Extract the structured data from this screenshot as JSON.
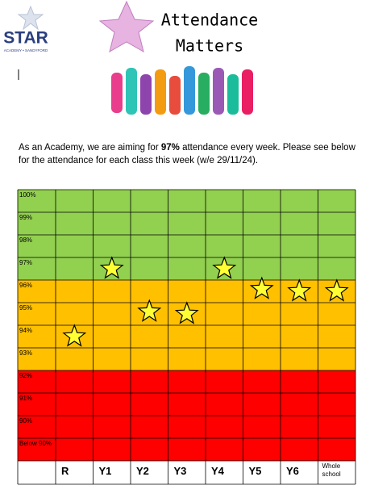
{
  "logo": {
    "name": "STAR",
    "tagline": "ACADEMY • SANDYFORD"
  },
  "header": {
    "title_line1": "Attendance",
    "title_line2": "Matters"
  },
  "intro": {
    "before": "As an Academy, we are aiming for ",
    "target": "97%",
    "after": " attendance every week. Please see below for the attendance for each class this week (w/e 29/11/24)."
  },
  "chart_data": {
    "type": "star-grid",
    "categories": [
      "R",
      "Y1",
      "Y2",
      "Y3",
      "Y4",
      "Y5",
      "Y6",
      "Whole school"
    ],
    "values": [
      94.5,
      97.5,
      95.6,
      95.5,
      97.5,
      96.6,
      96.5,
      96.5
    ],
    "ylim": [
      89,
      101
    ],
    "yticks": [
      {
        "value": 100,
        "label": "100%"
      },
      {
        "value": 99,
        "label": "99%"
      },
      {
        "value": 98,
        "label": "98%"
      },
      {
        "value": 97,
        "label": "97%"
      },
      {
        "value": 96,
        "label": "96%"
      },
      {
        "value": 95,
        "label": "95%"
      },
      {
        "value": 94,
        "label": "94%"
      },
      {
        "value": 93,
        "label": "93%"
      },
      {
        "value": 92,
        "label": "92%"
      },
      {
        "value": 91,
        "label": "91%"
      },
      {
        "value": 90,
        "label": "90%"
      },
      {
        "value": 89,
        "label": "Below 90%"
      }
    ],
    "bands": [
      {
        "min": 97,
        "max": 101,
        "color": "#92d050"
      },
      {
        "min": 93,
        "max": 97,
        "color": "#ffc000"
      },
      {
        "min": 89,
        "max": 93,
        "color": "#ff0000"
      }
    ],
    "color": "#ffff33"
  }
}
